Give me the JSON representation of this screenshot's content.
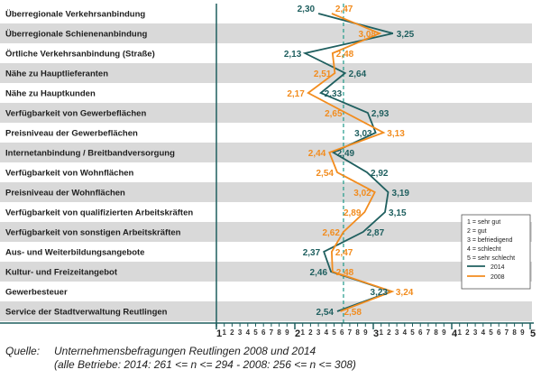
{
  "chart_data": {
    "type": "line",
    "orientation": "vertical-profile",
    "categories": [
      "Überregionale Verkehrsanbindung",
      "Überregionale Schienenanbindung",
      "Örtliche Verkehrsanbindung (Straße)",
      "Nähe zu Hauptlieferanten",
      "Nähe zu Hauptkunden",
      "Verfügbarkeit von Gewerbeflächen",
      "Preisniveau der Gewerbeflächen",
      "Internetanbindung / Breitbandversorgung",
      "Verfügbarkeit von Wohnflächen",
      "Preisniveau der Wohnflächen",
      "Verfügbarkeit von qualifizierten Arbeitskräften",
      "Verfügbarkeit von sonstigen Arbeitskräften",
      "Aus- und Weiterbildungsangebote",
      "Kultur- und Freizeitangebot",
      "Gewerbesteuer",
      "Service der Stadtverwaltung Reutlingen"
    ],
    "series": [
      {
        "name": "2014",
        "color": "#1f5f5f",
        "values": [
          2.3,
          3.25,
          2.13,
          2.64,
          2.33,
          2.93,
          3.03,
          2.49,
          2.92,
          3.19,
          3.15,
          2.87,
          2.37,
          2.46,
          3.23,
          2.54
        ],
        "labels": [
          "2,30",
          "3,25",
          "2,13",
          "2,64",
          "2,33",
          "2,93",
          "3,03",
          "2,49",
          "2,92",
          "3,19",
          "3,15",
          "2,87",
          "2,37",
          "2,46",
          "3,23",
          "2,54"
        ]
      },
      {
        "name": "2008",
        "color": "#f28c1e",
        "values": [
          2.47,
          3.08,
          2.48,
          2.51,
          2.17,
          2.65,
          3.13,
          2.44,
          2.54,
          3.02,
          2.89,
          2.62,
          2.47,
          2.48,
          3.24,
          2.58
        ],
        "labels": [
          "2,47",
          "3,08",
          "2,48",
          "2,51",
          "2,17",
          "2,65",
          "3,13",
          "2,44",
          "2,54",
          "3,02",
          "2,89",
          "2,62",
          "2,47",
          "2,48",
          "3,24",
          "2,58"
        ]
      }
    ],
    "value_axis": {
      "range": [
        1,
        5
      ],
      "major_ticks": [
        "1",
        "2",
        "3",
        "4",
        "5"
      ],
      "minor_ticks": [
        "1",
        "2",
        "3",
        "4",
        "5",
        "6",
        "7",
        "8",
        "9"
      ]
    },
    "reference_line": {
      "value": 2.62,
      "style": "dashed",
      "color": "#1f9a8a"
    },
    "legend": {
      "placement": "right",
      "scale_items": [
        "1 = sehr gut",
        "2 = gut",
        "3 = befriedigend",
        "4 = schlecht",
        "5 = sehr schlecht"
      ],
      "series_items": [
        "2014",
        "2008"
      ]
    },
    "row_shading": "alternating"
  },
  "source": {
    "label": "Quelle:",
    "line1": "Unternehmensbefragungen Reutlingen 2008 und 2014",
    "line2": "(alle Betriebe: 2014: 261 <= n <= 294 - 2008: 256 <= n <= 308)"
  }
}
